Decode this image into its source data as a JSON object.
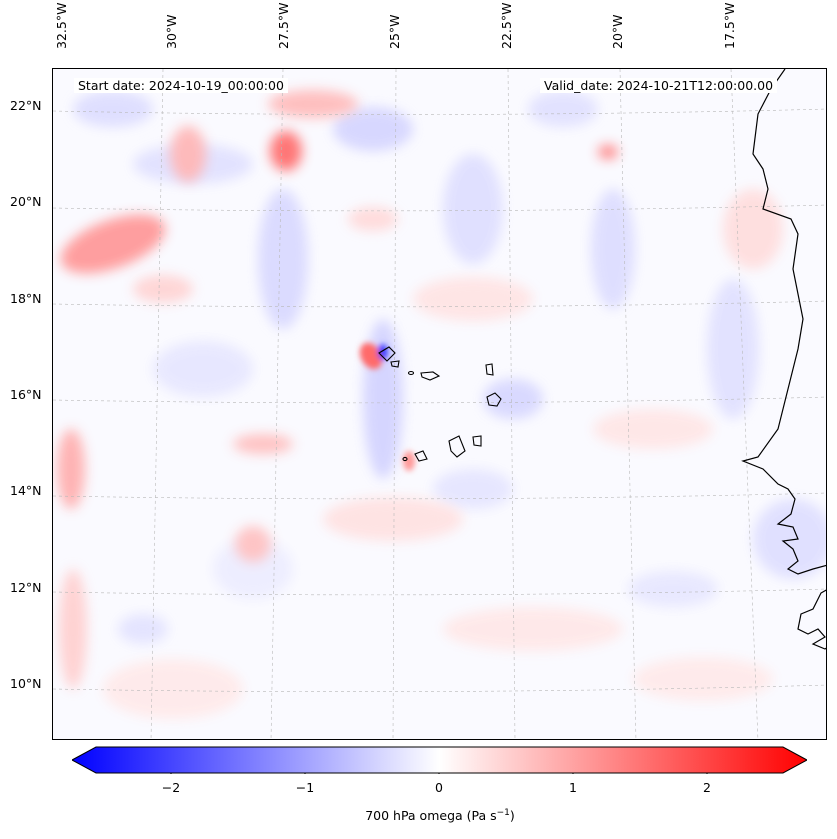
{
  "header": {
    "start_date": "Start date: 2024-10-19_00:00:00",
    "valid_date": "Valid_date: 2024-10-21T12:00:00.00"
  },
  "axes": {
    "lat_labels": [
      "22°N",
      "20°N",
      "18°N",
      "16°N",
      "14°N",
      "12°N",
      "10°N"
    ],
    "lon_labels": [
      "32.5°W",
      "30°W",
      "27.5°W",
      "25°W",
      "22.5°W",
      "20°W",
      "17.5°W"
    ]
  },
  "colorbar": {
    "ticks": [
      "−2",
      "−1",
      "0",
      "1",
      "2"
    ],
    "label_prefix": "700 hPa omega (Pa s",
    "label_exp": "−1",
    "label_suffix": ")",
    "range": [
      -2.6,
      2.6
    ],
    "cmap": "bwr",
    "color_min": "#0000ff",
    "color_mid": "#ffffff",
    "color_max": "#ff0000"
  },
  "map": {
    "region": "Cabo Verde / West African coast",
    "variable": "700 hPa omega",
    "extent_lon": [
      -32.7,
      -15.6
    ],
    "extent_lat": [
      8.8,
      22.7
    ]
  }
}
